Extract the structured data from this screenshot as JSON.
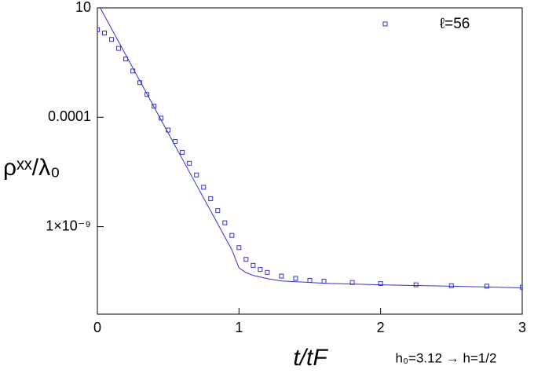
{
  "chart_data": {
    "type": "scatter",
    "ylabel": "ρˣˣ/λ₀",
    "xlabel": "t/tF",
    "annotation": "h₀=3.12 → h=1/2",
    "xlim": [
      0,
      3
    ],
    "xticks": [
      0,
      1,
      2,
      3
    ],
    "ylim": [
      1e-13,
      10
    ],
    "yticks": [
      10,
      0.0001,
      {
        "value": 1e-09,
        "label": "1×10⁻⁹"
      }
    ],
    "ylog": true,
    "legend": "upper right",
    "series": [
      {
        "name": "ℓ=56",
        "color": "#3333cc",
        "style": "markers",
        "x": [
          0,
          0.05,
          0.1,
          0.15,
          0.2,
          0.25,
          0.3,
          0.35,
          0.4,
          0.45,
          0.5,
          0.55,
          0.6,
          0.65,
          0.7,
          0.75,
          0.8,
          0.85,
          0.9,
          0.95,
          1.0,
          1.05,
          1.1,
          1.15,
          1.2,
          1.3,
          1.4,
          1.5,
          1.6,
          1.8,
          2.0,
          2.25,
          2.5,
          2.75,
          3.0
        ],
        "values": [
          1,
          0.71,
          0.36,
          0.14,
          0.046,
          0.013,
          0.0038,
          0.0011,
          0.00032,
          9.1e-05,
          2.6e-05,
          7.9e-06,
          2.5e-06,
          7.9e-07,
          2.3e-07,
          6.3e-08,
          1.9e-08,
          5.4e-09,
          1.5e-09,
          4e-10,
          1.1e-10,
          3.2e-11,
          1.7e-11,
          1.1e-11,
          8.1e-12,
          5.5e-12,
          4.3e-12,
          3.5e-12,
          3.2e-12,
          2.8e-12,
          2.5e-12,
          2.2e-12,
          2e-12,
          1.9e-12,
          1.7e-12
        ]
      },
      {
        "color": "#3333cc",
        "style": "line",
        "x": [
          0.02,
          0.5,
          0.9,
          0.95,
          1.0,
          1.05,
          1.1,
          1.2,
          1.3,
          1.6,
          2.0,
          2.5,
          3.0
        ],
        "values": [
          10,
          1.9e-05,
          3.4e-10,
          8.7e-11,
          1.3e-11,
          7.9e-12,
          5.9e-12,
          4.2e-12,
          3.3e-12,
          2.6e-12,
          2.2e-12,
          1.9e-12,
          1.6e-12
        ]
      }
    ]
  }
}
